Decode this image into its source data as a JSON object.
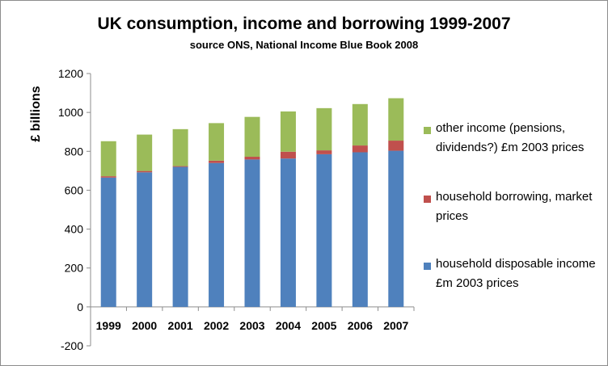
{
  "chart_data": {
    "type": "bar",
    "stacked": true,
    "title": "UK consumption, income and borrowing 1999-2007",
    "subtitle": "source ONS, National Income Blue Book 2008",
    "ylabel": "£ billions",
    "xlabel": "",
    "ylim": [
      -200,
      1200
    ],
    "yticks": [
      -200,
      0,
      200,
      400,
      600,
      800,
      1000,
      1200
    ],
    "categories": [
      "1999",
      "2000",
      "2001",
      "2002",
      "2003",
      "2004",
      "2005",
      "2006",
      "2007"
    ],
    "series": [
      {
        "name": "household disposable income\n£m 2003 prices",
        "color": "#4f81bd",
        "values": [
          665,
          692,
          720,
          740,
          758,
          763,
          785,
          795,
          803
        ]
      },
      {
        "name": "household borrowing, market prices",
        "color": "#c0504d",
        "values": [
          7,
          7,
          4,
          12,
          14,
          35,
          20,
          35,
          52
        ]
      },
      {
        "name": "other income (pensions, dividends?) £m 2003 prices",
        "color": "#9bbb59",
        "values": [
          180,
          187,
          190,
          193,
          205,
          207,
          217,
          213,
          218
        ]
      }
    ],
    "grid": false,
    "legend_position": "right"
  }
}
